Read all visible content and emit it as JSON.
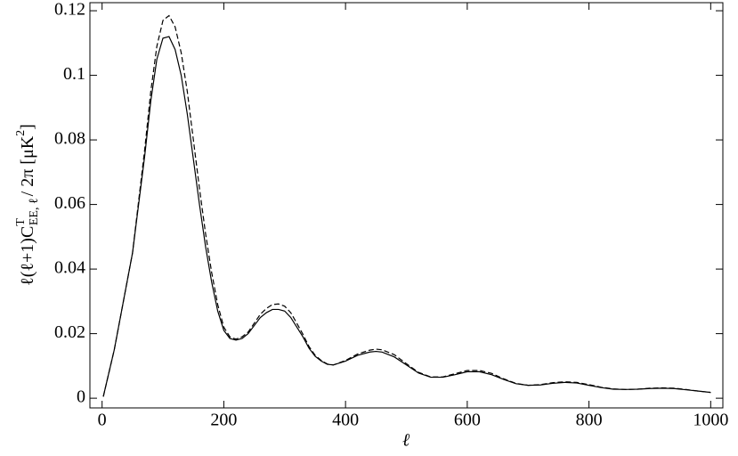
{
  "chart_data": {
    "type": "line",
    "xlabel": "ℓ",
    "ylabel": {
      "main": "ℓ(ℓ+1)C",
      "sup": "T",
      "sub": "EE, ℓ",
      "rest": "/ 2π [μK",
      "sup2": "2",
      "end": "]"
    },
    "x": [
      2,
      20,
      40,
      50,
      60,
      70,
      80,
      90,
      100,
      110,
      120,
      130,
      140,
      150,
      160,
      170,
      180,
      190,
      200,
      210,
      220,
      230,
      240,
      250,
      260,
      270,
      280,
      290,
      300,
      310,
      320,
      330,
      340,
      350,
      360,
      370,
      380,
      400,
      420,
      440,
      450,
      460,
      480,
      500,
      520,
      540,
      560,
      580,
      600,
      620,
      640,
      660,
      680,
      700,
      720,
      740,
      760,
      780,
      800,
      820,
      840,
      860,
      880,
      900,
      920,
      940,
      960,
      980,
      1000
    ],
    "series": [
      {
        "color": "#000000",
        "line_style": "solid",
        "values": [
          0.0005,
          0.015,
          0.035,
          0.045,
          0.06,
          0.075,
          0.092,
          0.105,
          0.1115,
          0.112,
          0.108,
          0.1,
          0.088,
          0.074,
          0.06,
          0.047,
          0.036,
          0.027,
          0.021,
          0.0185,
          0.018,
          0.0185,
          0.02,
          0.0225,
          0.025,
          0.0265,
          0.0275,
          0.0275,
          0.027,
          0.025,
          0.022,
          0.019,
          0.0155,
          0.013,
          0.0115,
          0.0105,
          0.0103,
          0.0115,
          0.0133,
          0.0143,
          0.0145,
          0.0143,
          0.0128,
          0.0103,
          0.0078,
          0.0065,
          0.0065,
          0.0073,
          0.0082,
          0.0082,
          0.0073,
          0.0058,
          0.0045,
          0.004,
          0.0041,
          0.0046,
          0.0049,
          0.0047,
          0.004,
          0.0033,
          0.0028,
          0.0027,
          0.0028,
          0.003,
          0.0031,
          0.003,
          0.0026,
          0.0022,
          0.0018
        ]
      },
      {
        "color": "#000000",
        "line_style": "dashed",
        "values": [
          0.0005,
          0.015,
          0.035,
          0.045,
          0.061,
          0.077,
          0.095,
          0.109,
          0.117,
          0.1185,
          0.115,
          0.107,
          0.095,
          0.08,
          0.065,
          0.051,
          0.039,
          0.029,
          0.022,
          0.019,
          0.0183,
          0.019,
          0.0205,
          0.0232,
          0.026,
          0.0278,
          0.029,
          0.0292,
          0.0285,
          0.0265,
          0.0232,
          0.0198,
          0.016,
          0.0133,
          0.0117,
          0.0106,
          0.0103,
          0.0117,
          0.0137,
          0.0149,
          0.0152,
          0.015,
          0.0135,
          0.0107,
          0.008,
          0.0066,
          0.0066,
          0.0076,
          0.0086,
          0.0086,
          0.0077,
          0.006,
          0.0046,
          0.004,
          0.0042,
          0.0048,
          0.0051,
          0.0049,
          0.0042,
          0.0034,
          0.0029,
          0.0027,
          0.0028,
          0.0031,
          0.0032,
          0.0031,
          0.0027,
          0.0022,
          0.0018
        ]
      }
    ],
    "xlim": [
      -20,
      1020
    ],
    "xticks": [
      0,
      200,
      400,
      600,
      800,
      1000
    ],
    "ylim": [
      -0.003,
      0.1225
    ],
    "yticks": [
      0,
      0.02,
      0.04,
      0.06,
      0.08,
      0.1,
      0.12
    ]
  }
}
